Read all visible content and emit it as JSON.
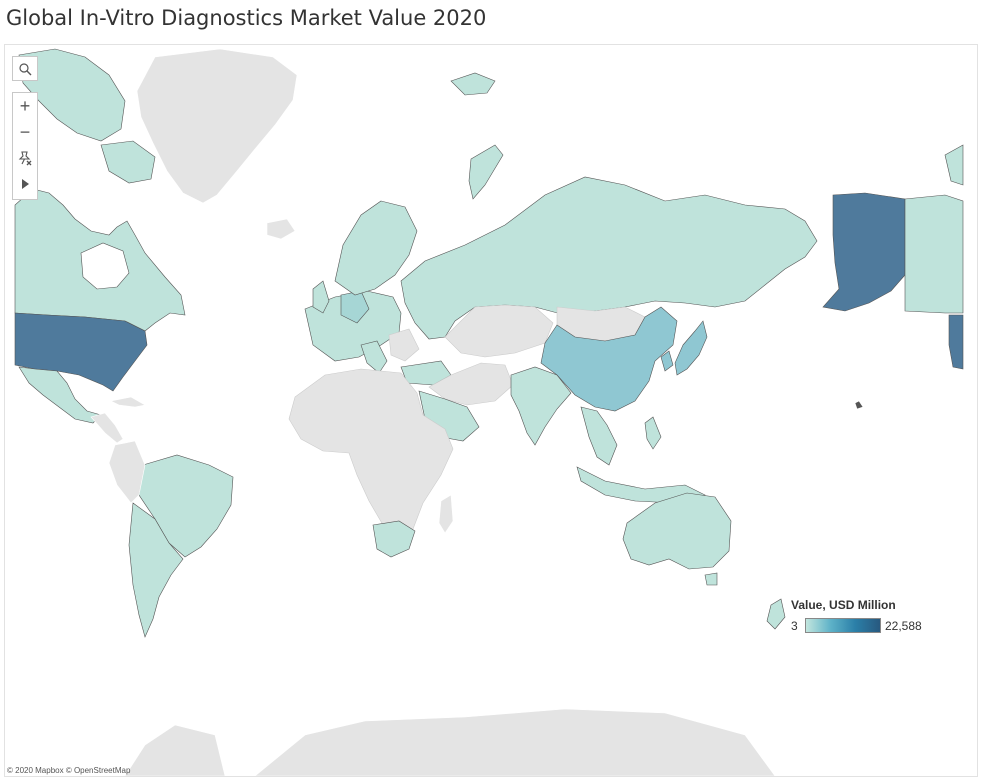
{
  "title": "Global In-Vitro Diagnostics Market Value 2020",
  "colors": {
    "no_data": "#e4e4e4",
    "low": "#bfe3db",
    "mid_low": "#a6d6d5",
    "mid": "#8fc7d2",
    "high": "#4f7a9c",
    "border": "#555555"
  },
  "toolbar": {
    "search_icon": "search-icon",
    "zoom_in_label": "+",
    "zoom_out_label": "−",
    "pin_icon": "pin-icon",
    "play_icon": "play-icon"
  },
  "legend": {
    "title": "Value, USD Million",
    "min_label": "3",
    "max_label": "22,588",
    "min": 3,
    "max": 22588
  },
  "attribution": "© 2020 Mapbox © OpenStreetMap"
}
